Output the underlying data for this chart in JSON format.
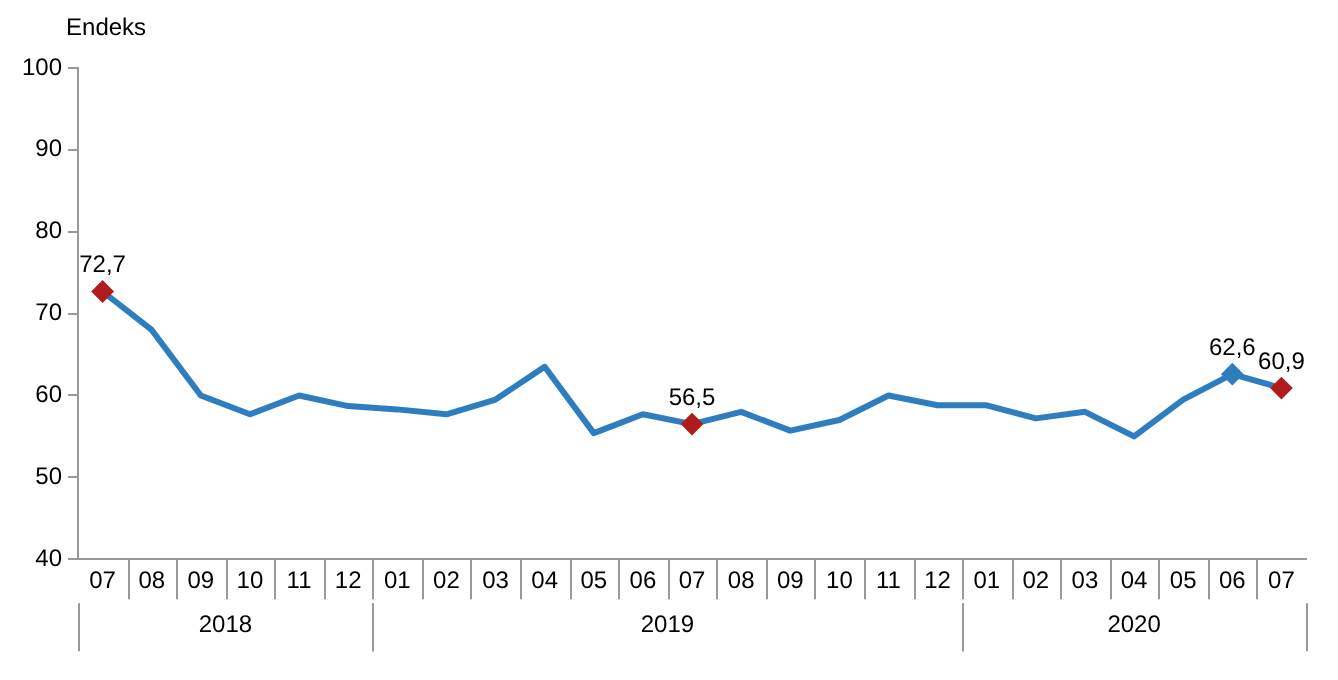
{
  "chart_data": {
    "type": "line",
    "ylabel": "Endeks",
    "categories": [
      "07",
      "08",
      "09",
      "10",
      "11",
      "12",
      "01",
      "02",
      "03",
      "04",
      "05",
      "06",
      "07",
      "08",
      "09",
      "10",
      "11",
      "12",
      "01",
      "02",
      "03",
      "04",
      "05",
      "06",
      "07"
    ],
    "annotations": [
      "2018",
      "2019",
      "2020"
    ],
    "series": [
      {
        "color": "#2e7ebf",
        "colors": [
          "#b01c1c",
          null,
          null,
          null,
          null,
          null,
          null,
          null,
          null,
          null,
          null,
          null,
          "#b01c1c",
          null,
          null,
          null,
          null,
          null,
          null,
          null,
          null,
          null,
          null,
          "#2e7ebf",
          "#b01c1c"
        ],
        "values": [
          72.7,
          68.0,
          60.0,
          57.7,
          60.0,
          58.7,
          58.3,
          57.7,
          59.5,
          63.5,
          55.4,
          57.7,
          56.5,
          58.0,
          55.7,
          57.0,
          60.0,
          58.8,
          58.8,
          57.2,
          58.0,
          55.0,
          59.5,
          62.6,
          60.9
        ],
        "value_labels": [
          "72,7",
          null,
          null,
          null,
          null,
          null,
          null,
          null,
          null,
          null,
          null,
          null,
          "56,5",
          null,
          null,
          null,
          null,
          null,
          null,
          null,
          null,
          null,
          null,
          "62,6",
          "60,9"
        ]
      }
    ],
    "ylim": [
      40,
      100
    ],
    "yticks": [
      40,
      50,
      60,
      70,
      80,
      90,
      100
    ],
    "grid": false,
    "legend": false,
    "line_style": "solid"
  }
}
